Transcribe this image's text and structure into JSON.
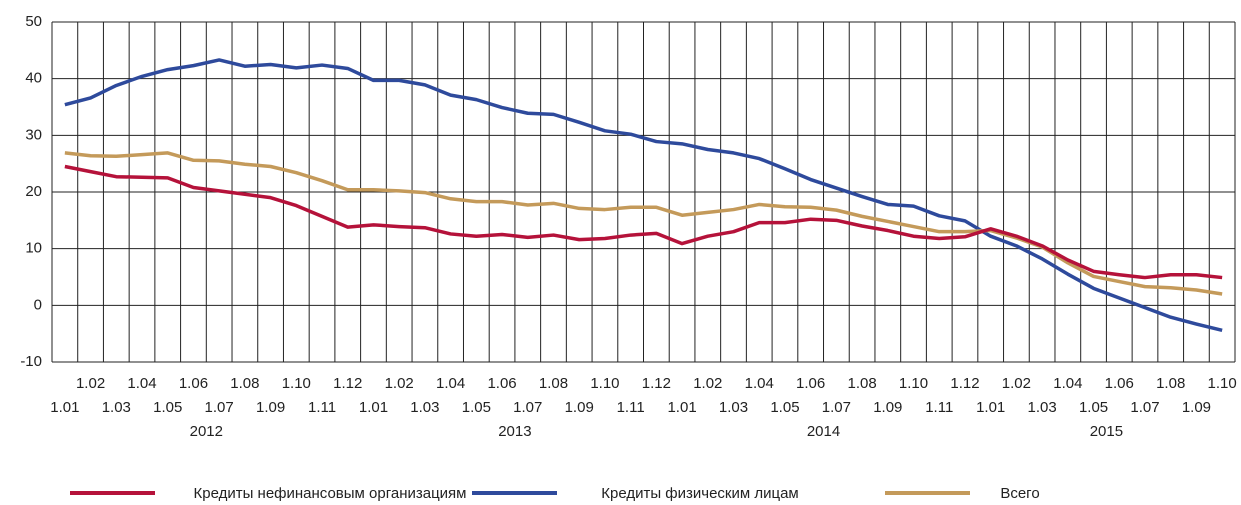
{
  "chart_data": {
    "type": "line",
    "categories": [
      "1.01",
      "1.02",
      "1.03",
      "1.04",
      "1.05",
      "1.06",
      "1.07",
      "1.08",
      "1.09",
      "1.10",
      "1.11",
      "1.12",
      "1.01",
      "1.02",
      "1.03",
      "1.04",
      "1.05",
      "1.06",
      "1.07",
      "1.08",
      "1.09",
      "1.10",
      "1.11",
      "1.12",
      "1.01",
      "1.02",
      "1.03",
      "1.04",
      "1.05",
      "1.06",
      "1.07",
      "1.08",
      "1.09",
      "1.10",
      "1.11",
      "1.12",
      "1.01",
      "1.02",
      "1.03",
      "1.04",
      "1.05",
      "1.06",
      "1.07",
      "1.08",
      "1.09",
      "1.10"
    ],
    "years": [
      "2012",
      "2013",
      "2014",
      "2015"
    ],
    "series": [
      {
        "name": "Кредиты нефинансовым организациям",
        "color": "#b5123a",
        "values": [
          24.5,
          23.6,
          22.7,
          22.6,
          22.5,
          20.8,
          20.2,
          19.6,
          19.0,
          17.6,
          15.7,
          13.8,
          14.2,
          13.9,
          13.7,
          12.6,
          12.2,
          12.5,
          12.0,
          12.4,
          11.6,
          11.8,
          12.4,
          12.7,
          10.9,
          12.2,
          13.0,
          14.6,
          14.6,
          15.2,
          15.0,
          14.0,
          13.2,
          12.2,
          11.8,
          12.1,
          13.5,
          12.2,
          10.5,
          8.0,
          6.0,
          5.4,
          4.9,
          5.4,
          5.4,
          4.9
        ]
      },
      {
        "name": "Кредиты физическим лицам",
        "color": "#2e4a9c",
        "values": [
          35.4,
          36.6,
          38.8,
          40.4,
          41.6,
          42.3,
          43.3,
          42.2,
          42.5,
          41.9,
          42.4,
          41.8,
          39.7,
          39.7,
          38.9,
          37.1,
          36.3,
          34.9,
          33.9,
          33.7,
          32.3,
          30.8,
          30.2,
          28.9,
          28.5,
          27.5,
          26.9,
          25.9,
          24.1,
          22.2,
          20.7,
          19.2,
          17.8,
          17.5,
          15.8,
          14.9,
          12.2,
          10.5,
          8.2,
          5.5,
          3.0,
          1.3,
          -0.4,
          -2.1,
          -3.3,
          -4.4
        ]
      },
      {
        "name": "Всего",
        "color": "#c49a5a",
        "values": [
          26.9,
          26.4,
          26.3,
          26.6,
          26.9,
          25.6,
          25.5,
          24.9,
          24.5,
          23.4,
          22.0,
          20.4,
          20.4,
          20.2,
          19.9,
          18.8,
          18.3,
          18.3,
          17.7,
          18.0,
          17.1,
          16.9,
          17.3,
          17.3,
          15.9,
          16.4,
          16.9,
          17.8,
          17.4,
          17.3,
          16.8,
          15.7,
          14.8,
          13.9,
          13.0,
          13.0,
          13.2,
          11.9,
          10.3,
          7.5,
          5.1,
          4.2,
          3.3,
          3.1,
          2.7,
          2.0
        ]
      }
    ],
    "ylim": [
      -10,
      50
    ],
    "yticks": [
      -10,
      0,
      10,
      20,
      30,
      40,
      50
    ],
    "grid": true,
    "legend": "bottom"
  }
}
